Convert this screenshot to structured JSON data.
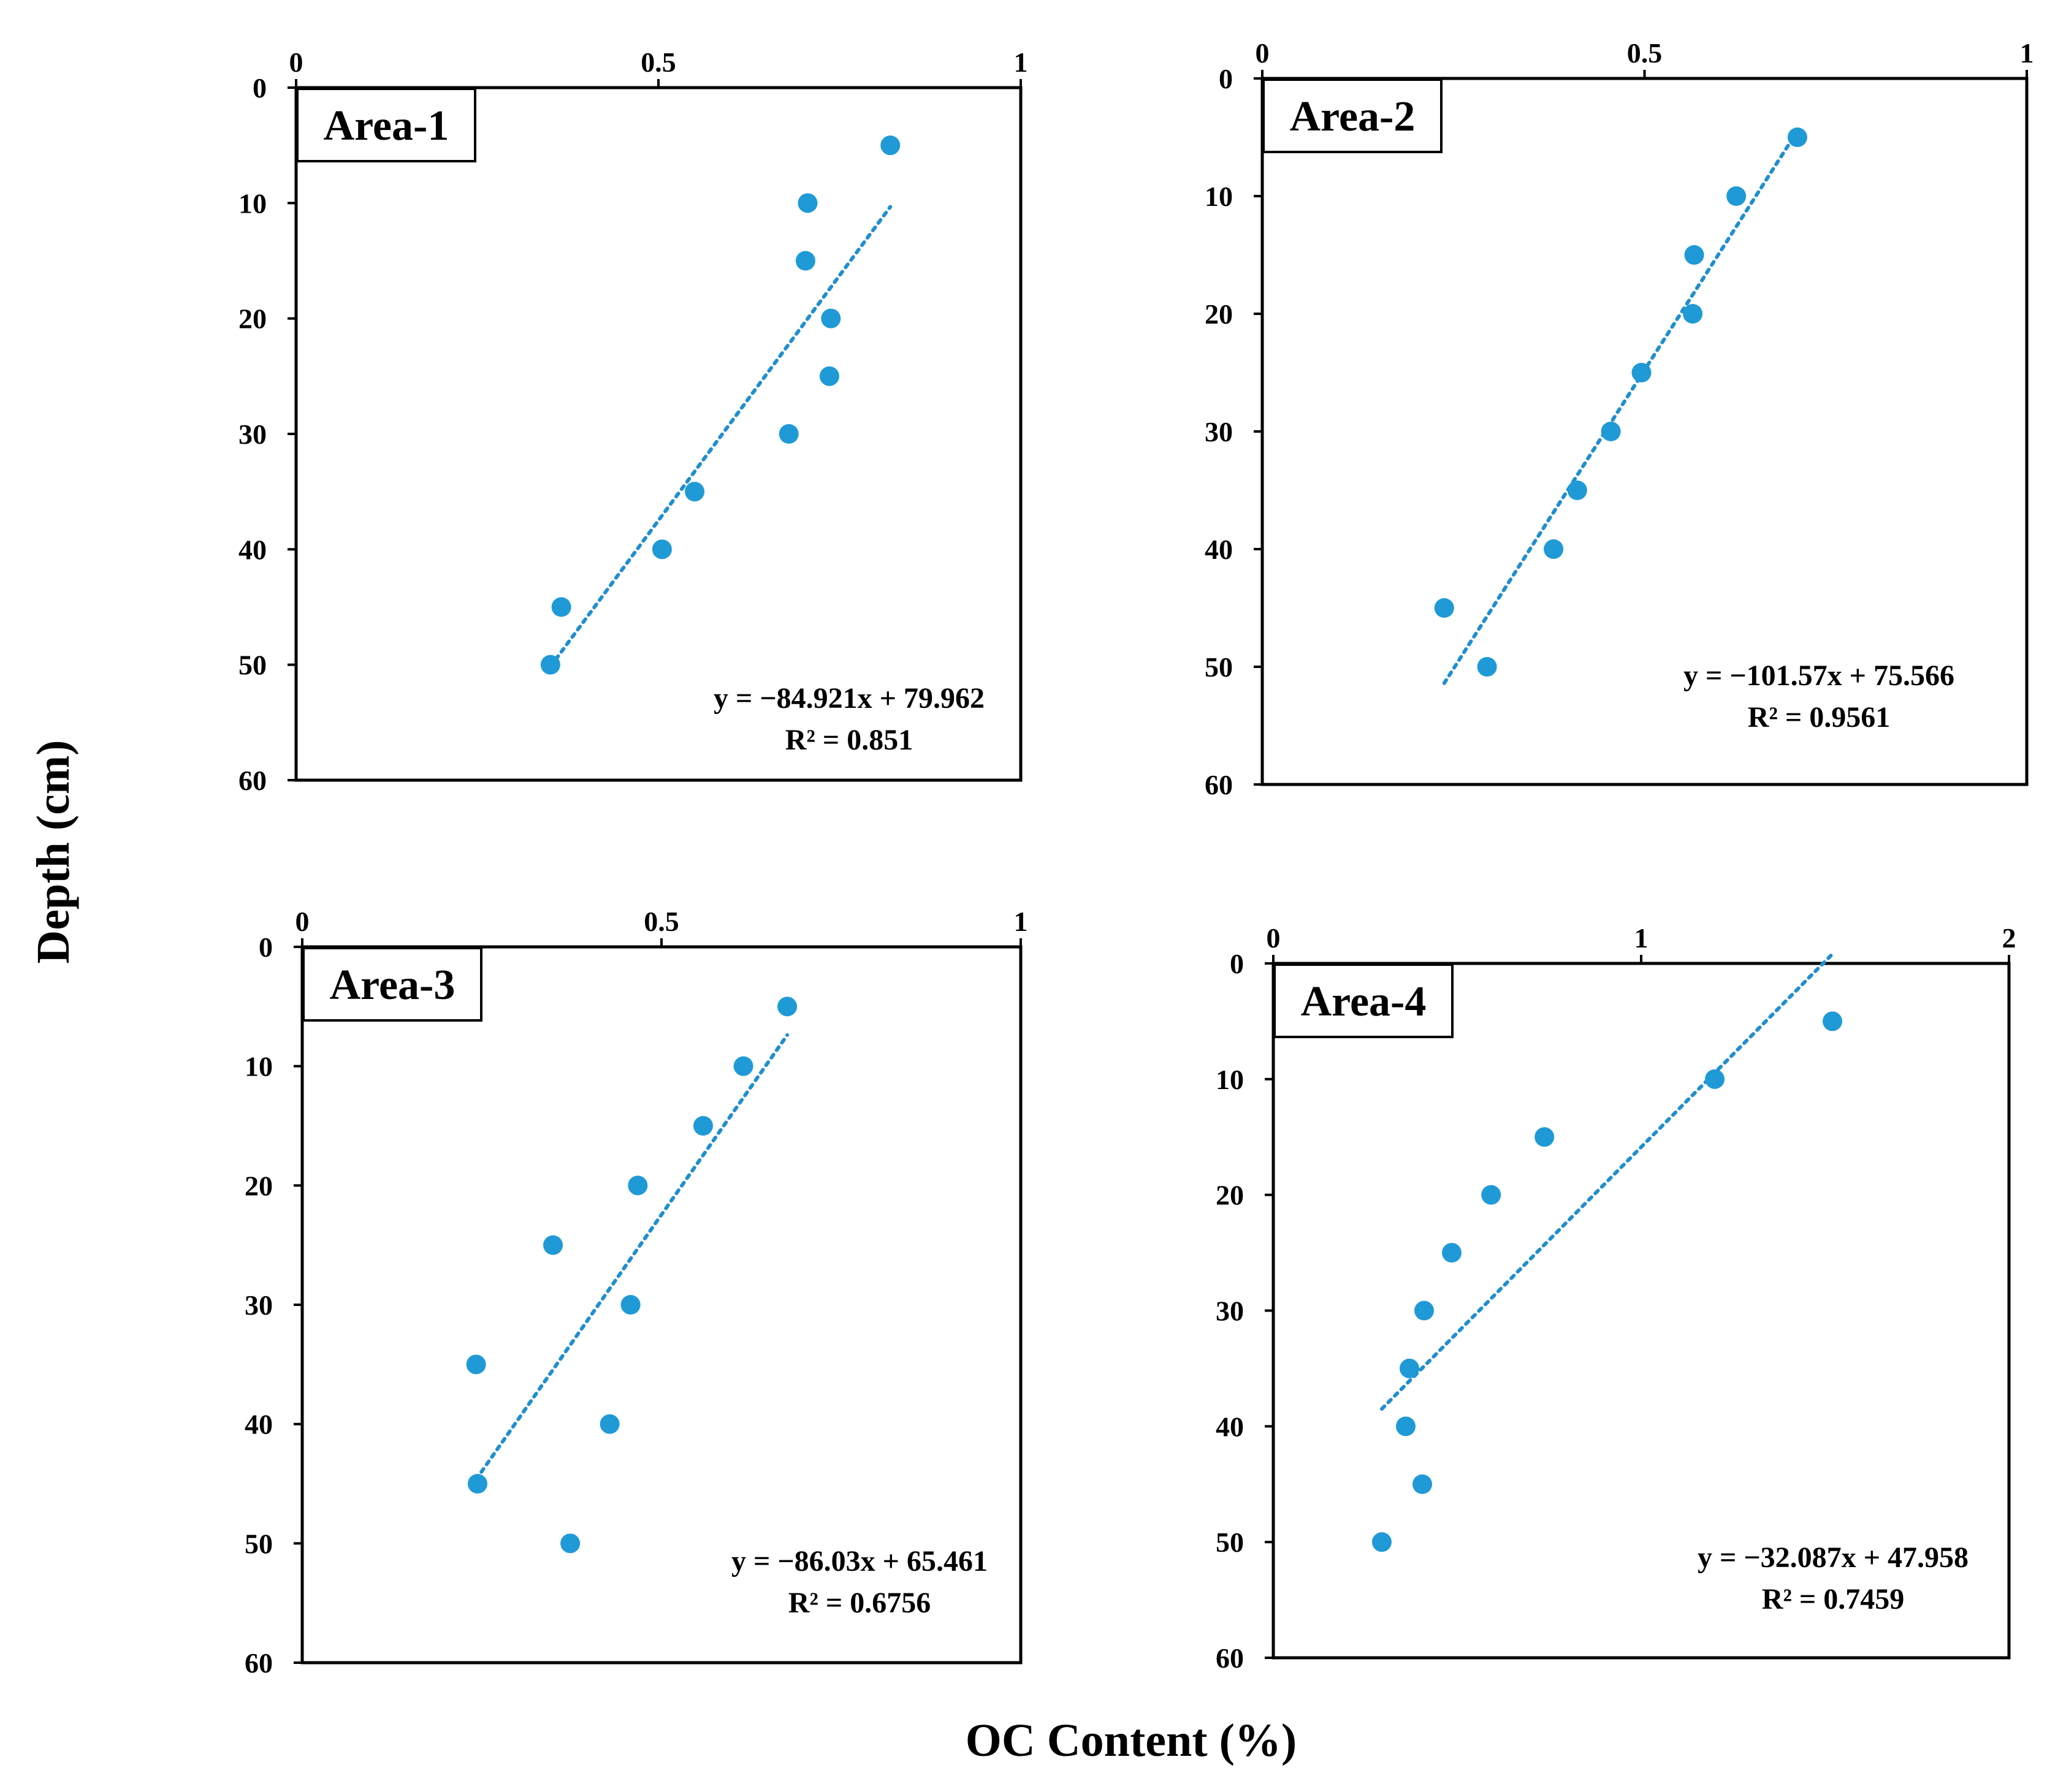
{
  "figure": {
    "x_axis_title": "OC Content (%)",
    "y_axis_title": "Depth (cm)",
    "point_color": "#1f9ad6",
    "trendline_color": "#1f8fcf"
  },
  "chart_data": [
    {
      "type": "scatter",
      "title": "Area-1",
      "xlabel": "OC Content (%)",
      "ylabel": "Depth (cm)",
      "xlim": [
        0,
        1
      ],
      "ylim": [
        0,
        60
      ],
      "y_inverted": true,
      "x_ticks": [
        0,
        0.5,
        1
      ],
      "x_tick_labels": [
        "0",
        "0.5",
        "1"
      ],
      "y_ticks": [
        0,
        10,
        20,
        30,
        40,
        50,
        60
      ],
      "y_tick_labels": [
        "0",
        "10",
        "20",
        "30",
        "40",
        "50",
        "60"
      ],
      "x_axis_position": "top",
      "points": [
        {
          "x": 0.82,
          "y": 5
        },
        {
          "x": 0.706,
          "y": 10
        },
        {
          "x": 0.703,
          "y": 15
        },
        {
          "x": 0.738,
          "y": 20
        },
        {
          "x": 0.736,
          "y": 25
        },
        {
          "x": 0.68,
          "y": 30
        },
        {
          "x": 0.55,
          "y": 35
        },
        {
          "x": 0.505,
          "y": 40
        },
        {
          "x": 0.366,
          "y": 45
        },
        {
          "x": 0.351,
          "y": 50
        }
      ],
      "trendline": {
        "equation": "y = −84.921x + 79.962",
        "r2": "R² = 0.851",
        "slope": -84.921,
        "intercept": 79.962,
        "x_range": [
          0.351,
          0.82
        ]
      }
    },
    {
      "type": "scatter",
      "title": "Area-2",
      "xlabel": "OC Content (%)",
      "ylabel": "Depth (cm)",
      "xlim": [
        0,
        1
      ],
      "ylim": [
        0,
        60
      ],
      "y_inverted": true,
      "x_ticks": [
        0,
        0.5,
        1
      ],
      "x_tick_labels": [
        "0",
        "0.5",
        "1"
      ],
      "y_ticks": [
        0,
        10,
        20,
        30,
        40,
        50,
        60
      ],
      "y_tick_labels": [
        "0",
        "10",
        "20",
        "30",
        "40",
        "50",
        "60"
      ],
      "x_axis_position": "top",
      "points": [
        {
          "x": 0.7,
          "y": 5
        },
        {
          "x": 0.62,
          "y": 10
        },
        {
          "x": 0.565,
          "y": 15
        },
        {
          "x": 0.563,
          "y": 20
        },
        {
          "x": 0.496,
          "y": 25
        },
        {
          "x": 0.456,
          "y": 30
        },
        {
          "x": 0.412,
          "y": 35
        },
        {
          "x": 0.381,
          "y": 40
        },
        {
          "x": 0.238,
          "y": 45
        },
        {
          "x": 0.294,
          "y": 50
        }
      ],
      "trendline": {
        "equation": "y = −101.57x + 75.566",
        "r2": "R² = 0.9561",
        "slope": -101.57,
        "intercept": 75.566,
        "x_range": [
          0.238,
          0.7
        ]
      }
    },
    {
      "type": "scatter",
      "title": "Area-3",
      "xlabel": "OC Content (%)",
      "ylabel": "Depth (cm)",
      "xlim": [
        0,
        1
      ],
      "ylim": [
        0,
        60
      ],
      "y_inverted": true,
      "x_ticks": [
        0,
        0.5,
        1
      ],
      "x_tick_labels": [
        "0",
        "0.5",
        "1"
      ],
      "y_ticks": [
        0,
        10,
        20,
        30,
        40,
        50,
        60
      ],
      "y_tick_labels": [
        "0",
        "10",
        "20",
        "30",
        "40",
        "50",
        "60"
      ],
      "x_axis_position": "top",
      "points": [
        {
          "x": 0.675,
          "y": 5
        },
        {
          "x": 0.614,
          "y": 10
        },
        {
          "x": 0.558,
          "y": 15
        },
        {
          "x": 0.467,
          "y": 20
        },
        {
          "x": 0.349,
          "y": 25
        },
        {
          "x": 0.457,
          "y": 30
        },
        {
          "x": 0.242,
          "y": 35
        },
        {
          "x": 0.428,
          "y": 40
        },
        {
          "x": 0.244,
          "y": 45
        },
        {
          "x": 0.373,
          "y": 50
        }
      ],
      "trendline": {
        "equation": "y = −86.03x + 65.461",
        "r2": "R² = 0.6756",
        "slope": -86.03,
        "intercept": 65.461,
        "x_range": [
          0.242,
          0.675
        ]
      }
    },
    {
      "type": "scatter",
      "title": "Area-4",
      "xlabel": "OC Content (%)",
      "ylabel": "Depth (cm)",
      "xlim": [
        0,
        2
      ],
      "ylim": [
        0,
        60
      ],
      "y_inverted": true,
      "x_ticks": [
        0,
        1,
        2
      ],
      "x_tick_labels": [
        "0",
        "1",
        "2"
      ],
      "y_ticks": [
        0,
        10,
        20,
        30,
        40,
        50,
        60
      ],
      "y_tick_labels": [
        "0",
        "10",
        "20",
        "30",
        "40",
        "50",
        "60"
      ],
      "x_axis_position": "top",
      "points": [
        {
          "x": 1.52,
          "y": 5
        },
        {
          "x": 1.2,
          "y": 10
        },
        {
          "x": 0.737,
          "y": 15
        },
        {
          "x": 0.592,
          "y": 20
        },
        {
          "x": 0.485,
          "y": 25
        },
        {
          "x": 0.41,
          "y": 30
        },
        {
          "x": 0.37,
          "y": 35
        },
        {
          "x": 0.36,
          "y": 40
        },
        {
          "x": 0.405,
          "y": 45
        },
        {
          "x": 0.295,
          "y": 50
        }
      ],
      "trendline": {
        "equation": "y = −32.087x + 47.958",
        "r2": "R² = 0.7459",
        "slope": -32.087,
        "intercept": 47.958,
        "x_range": [
          0.295,
          1.52
        ]
      }
    }
  ]
}
